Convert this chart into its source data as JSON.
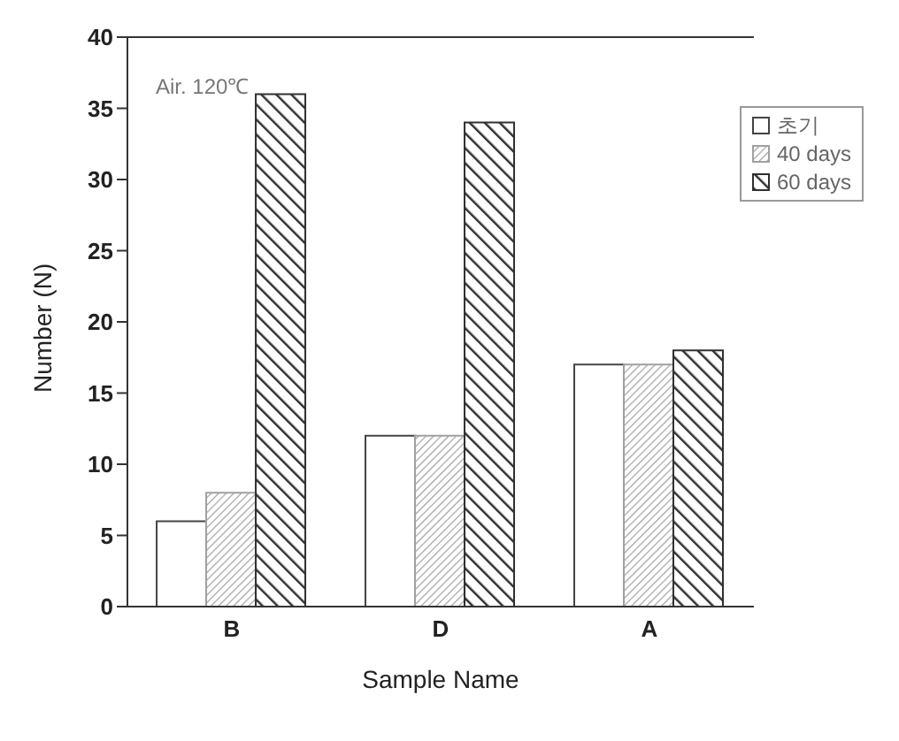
{
  "chart_data": {
    "type": "bar",
    "xlabel": "Sample Name",
    "ylabel": "Number (N)",
    "categories": [
      "B",
      "D",
      "A"
    ],
    "series": [
      {
        "name": "초기",
        "color": "#ffffff",
        "values": [
          6,
          12,
          17
        ]
      },
      {
        "name": "40 days",
        "color": "#a0a0a0",
        "values": [
          8,
          12,
          17
        ]
      },
      {
        "name": "60 days",
        "color": "#303030",
        "values": [
          36,
          34,
          18
        ]
      }
    ],
    "ylim": [
      0,
      40
    ],
    "yticks": [
      0,
      5,
      10,
      15,
      20,
      25,
      30,
      35,
      40
    ],
    "grid": false,
    "legend": "top right",
    "annotations": [
      "Air. 120℃"
    ]
  }
}
